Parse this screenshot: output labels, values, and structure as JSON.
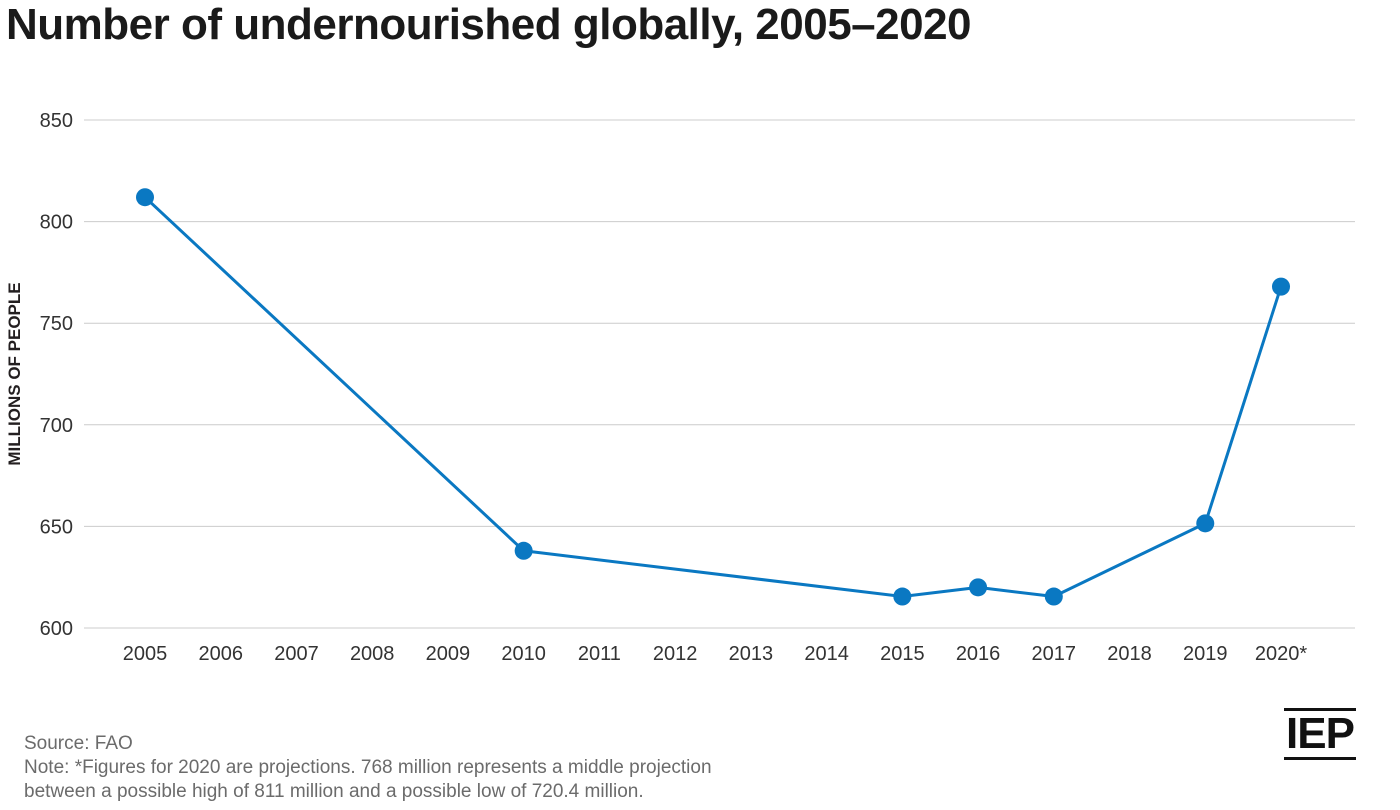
{
  "title": "Number of undernourished globally, 2005–2020",
  "footer": {
    "source": "Source: FAO",
    "note_line1": "Note: *Figures for 2020 are projections. 768 million represents a middle projection",
    "note_line2": "between a possible high of 811 million and a possible low of 720.4 million."
  },
  "logo": {
    "text": "IEP"
  },
  "colors": {
    "series": "#0a78c2",
    "grid": "#cccccc"
  },
  "chart_data": {
    "type": "line",
    "title": "Number of undernourished globally, 2005–2020",
    "xlabel": "",
    "ylabel": "MILLIONS OF PEOPLE",
    "x": [
      "2005",
      "2006",
      "2007",
      "2008",
      "2009",
      "2010",
      "2011",
      "2012",
      "2013",
      "2014",
      "2015",
      "2016",
      "2017",
      "2018",
      "2019",
      "2020*"
    ],
    "ylim": [
      600,
      850
    ],
    "yticks": [
      600,
      650,
      700,
      750,
      800,
      850
    ],
    "grid": "horizontal",
    "legend": "none",
    "series": [
      {
        "name": "",
        "points": [
          {
            "x": "2005",
            "y": 812
          },
          {
            "x": "2010",
            "y": 638
          },
          {
            "x": "2015",
            "y": 615.5
          },
          {
            "x": "2016",
            "y": 620
          },
          {
            "x": "2017",
            "y": 615.5
          },
          {
            "x": "2019",
            "y": 651.5
          },
          {
            "x": "2020*",
            "y": 768
          }
        ]
      }
    ]
  }
}
